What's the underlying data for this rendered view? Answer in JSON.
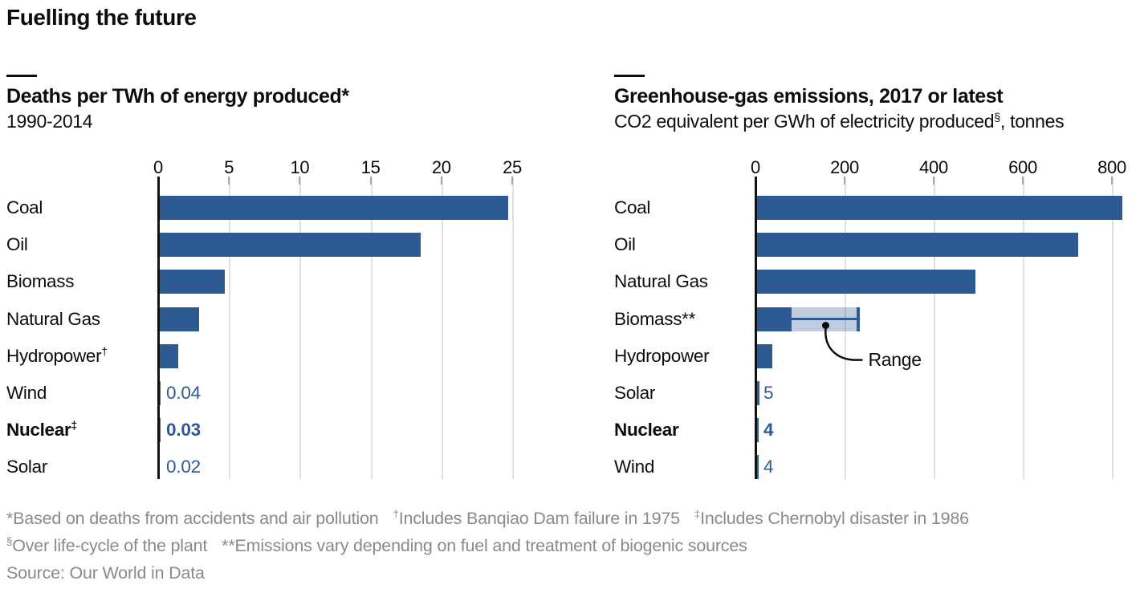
{
  "title": "Fuelling the future",
  "source": "Source: Our World in Data",
  "colors": {
    "bar_blue": "#2e5a94",
    "range_light_blue": "#c2cfe2",
    "value_text_blue": "#2e5a94",
    "footnote_gray": "#8a8a8a",
    "gridline_gray": "#e0e0e0",
    "axis_black": "#111111"
  },
  "chart_data": [
    {
      "type": "bar",
      "title": "Deaths per TWh of energy produced*",
      "subtitle_parts": [
        {
          "t": "1990-2014",
          "sup": false
        }
      ],
      "xlabel": "",
      "xlim": [
        0,
        25
      ],
      "ticks": [
        0,
        5,
        10,
        15,
        20,
        25
      ],
      "grid": true,
      "legend": "none",
      "rows": [
        {
          "label": "Coal",
          "value": 24.6
        },
        {
          "label": "Oil",
          "value": 18.4
        },
        {
          "label": "Biomass",
          "value": 4.6
        },
        {
          "label": "Natural Gas",
          "value": 2.8
        },
        {
          "label": "Hydropower",
          "label_sup": "†",
          "value": 1.3
        },
        {
          "label": "Wind",
          "value": 0.04,
          "value_label": "0.04"
        },
        {
          "label": "Nuclear",
          "label_sup": "‡",
          "bold": true,
          "value": 0.03,
          "value_label": "0.03"
        },
        {
          "label": "Solar",
          "value": 0.02,
          "value_label": "0.02"
        }
      ]
    },
    {
      "type": "bar",
      "title": "Greenhouse-gas emissions, 2017 or latest",
      "subtitle_parts": [
        {
          "t": "CO2 equivalent per GWh of electricity produced",
          "sup": false
        },
        {
          "t": "§",
          "sup": true
        },
        {
          "t": ", tonnes",
          "sup": false
        }
      ],
      "xlabel": "",
      "xlim": [
        0,
        830
      ],
      "ticks": [
        0,
        200,
        400,
        600,
        800
      ],
      "grid": true,
      "legend": "none",
      "rows": [
        {
          "label": "Coal",
          "value": 820
        },
        {
          "label": "Oil",
          "value": 720
        },
        {
          "label": "Natural Gas",
          "value": 490
        },
        {
          "label": "Biomass**",
          "value": 78,
          "range_max": 230
        },
        {
          "label": "Hydropower",
          "value": 34
        },
        {
          "label": "Solar",
          "value": 5,
          "value_label": "5"
        },
        {
          "label": "Nuclear",
          "bold": true,
          "value": 4,
          "value_label": "4"
        },
        {
          "label": "Wind",
          "value": 4,
          "value_label": "4"
        }
      ],
      "annotation": {
        "label": "Range",
        "target": "Biomass** range band"
      }
    }
  ],
  "footnotes": [
    [
      {
        "t": "*Based on deaths from accidents and air pollution",
        "sup": false,
        "gap": false
      },
      {
        "t": "†",
        "sup": true,
        "gap": true
      },
      {
        "t": "Includes Banqiao Dam failure in 1975",
        "sup": false,
        "gap": false
      },
      {
        "t": "‡",
        "sup": true,
        "gap": true
      },
      {
        "t": "Includes Chernobyl disaster in 1986",
        "sup": false,
        "gap": false
      }
    ],
    [
      {
        "t": "§",
        "sup": true,
        "gap": false
      },
      {
        "t": "Over life-cycle of the plant",
        "sup": false,
        "gap": false
      },
      {
        "t": "**Emissions vary depending on fuel and treatment of biogenic sources",
        "sup": false,
        "gap": true
      }
    ]
  ]
}
